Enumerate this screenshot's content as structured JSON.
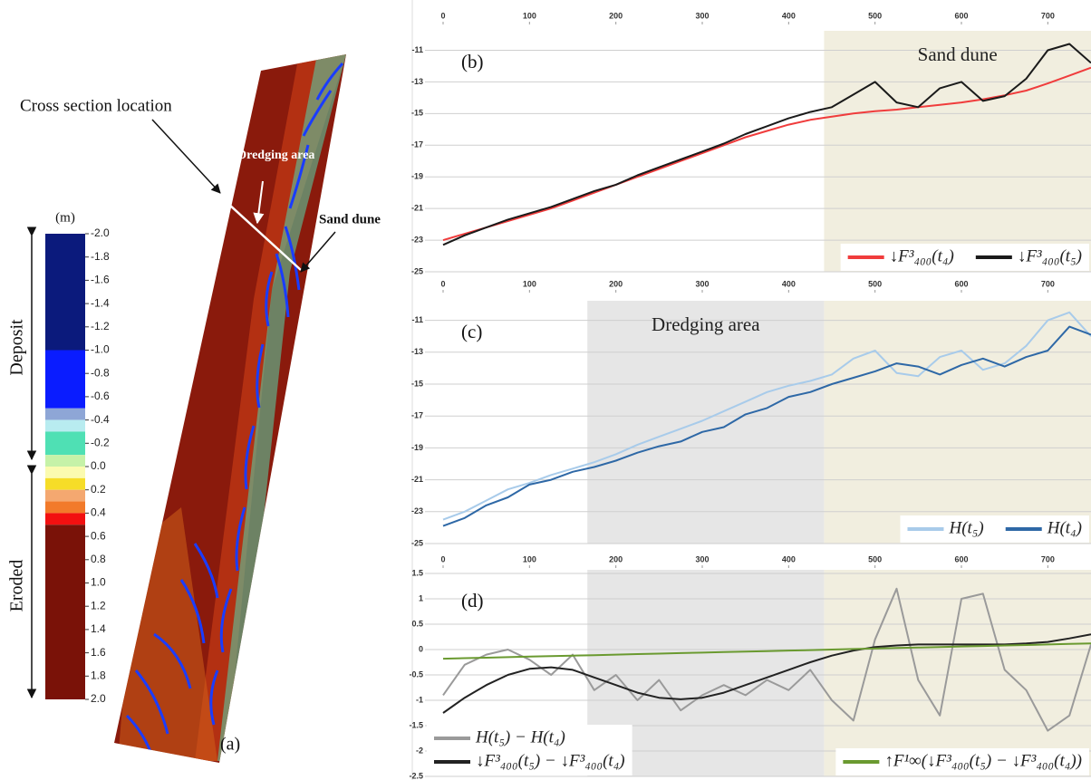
{
  "map_panel": {
    "label": "(a)",
    "cross_section_label": "Cross section location",
    "dredging_label": "Dredging area",
    "sand_dune_label": "Sand dune",
    "colorbar": {
      "unit": "(m)",
      "range": [
        -2,
        2
      ],
      "ticks": [
        {
          "value": -2,
          "label": "-2.0"
        },
        {
          "value": -1.8,
          "label": "-1.8"
        },
        {
          "value": -1.6,
          "label": "-1.6"
        },
        {
          "value": -1.4,
          "label": "-1.4"
        },
        {
          "value": -1.2,
          "label": "-1.2"
        },
        {
          "value": -1,
          "label": "-1.0"
        },
        {
          "value": -0.8,
          "label": "-0.8"
        },
        {
          "value": -0.6,
          "label": "-0.6"
        },
        {
          "value": -0.4,
          "label": "-0.4"
        },
        {
          "value": -0.2,
          "label": "-0.2"
        },
        {
          "value": 0,
          "label": "0.0"
        },
        {
          "value": 0.2,
          "label": "0.2"
        },
        {
          "value": 0.4,
          "label": "0.4"
        },
        {
          "value": 0.6,
          "label": "0.6"
        },
        {
          "value": 0.8,
          "label": "0.8"
        },
        {
          "value": 1,
          "label": "1.0"
        },
        {
          "value": 1.2,
          "label": "1.2"
        },
        {
          "value": 1.4,
          "label": "1.4"
        },
        {
          "value": 1.6,
          "label": "1.6"
        },
        {
          "value": 1.8,
          "label": "1.8"
        },
        {
          "value": 2,
          "label": "2.0"
        }
      ],
      "bands": [
        {
          "from": -2,
          "to": -1,
          "color": "#0b1a7c"
        },
        {
          "from": -1,
          "to": -0.5,
          "color": "#0a1cff"
        },
        {
          "from": -0.5,
          "to": -0.4,
          "color": "#8ea6d6"
        },
        {
          "from": -0.4,
          "to": -0.3,
          "color": "#b8ecf0"
        },
        {
          "from": -0.3,
          "to": -0.1,
          "color": "#4fe0b4"
        },
        {
          "from": -0.1,
          "to": 0,
          "color": "#c6f2a8"
        },
        {
          "from": 0,
          "to": 0.1,
          "color": "#fbfbb0"
        },
        {
          "from": 0.1,
          "to": 0.2,
          "color": "#f6dd28"
        },
        {
          "from": 0.2,
          "to": 0.3,
          "color": "#f4a870"
        },
        {
          "from": 0.3,
          "to": 0.4,
          "color": "#f27a2a"
        },
        {
          "from": 0.4,
          "to": 0.5,
          "color": "#f21010"
        },
        {
          "from": 0.5,
          "to": 2,
          "color": "#7a1208"
        }
      ],
      "groups": [
        {
          "label": "Deposit",
          "from": -2,
          "to": 0
        },
        {
          "label": "Eroded",
          "from": 0,
          "to": 2
        }
      ]
    }
  },
  "chart_data": [
    {
      "type": "line",
      "panel_label": "(b)",
      "legend": "lower right",
      "grid": true,
      "regions": [
        {
          "label": "Sand dune",
          "span": [
            441,
            750
          ],
          "color": "#f1eedf"
        }
      ],
      "x": [
        0,
        25,
        50,
        75,
        100,
        125,
        150,
        175,
        200,
        225,
        250,
        275,
        300,
        325,
        350,
        375,
        400,
        425,
        450,
        475,
        500,
        525,
        550,
        575,
        600,
        625,
        650,
        675,
        700,
        725,
        750
      ],
      "xlim": [
        0,
        750
      ],
      "xticks": [
        0,
        100,
        200,
        300,
        400,
        500,
        600,
        700
      ],
      "ylim": [
        -25,
        -10
      ],
      "yticks": [
        -11,
        -13,
        -15,
        -17,
        -19,
        -21,
        -23,
        -25
      ],
      "series": [
        {
          "name": "↓F³₄₀₀(t₄)",
          "color": "#f03c3c",
          "values": [
            -23.0,
            -22.6,
            -22.2,
            -21.8,
            -21.4,
            -21.0,
            -20.5,
            -20.0,
            -19.5,
            -19.0,
            -18.5,
            -18.0,
            -17.5,
            -17.0,
            -16.5,
            -16.1,
            -15.7,
            -15.4,
            -15.2,
            -15.0,
            -14.85,
            -14.75,
            -14.6,
            -14.45,
            -14.3,
            -14.1,
            -13.85,
            -13.55,
            -13.1,
            -12.6,
            -12.1
          ]
        },
        {
          "name": "↓F³₄₀₀(t₅)",
          "color": "#1a1a1a",
          "values": [
            -23.3,
            -22.7,
            -22.2,
            -21.7,
            -21.3,
            -20.9,
            -20.4,
            -19.9,
            -19.5,
            -18.9,
            -18.4,
            -17.9,
            -17.4,
            -16.9,
            -16.3,
            -15.8,
            -15.3,
            -14.9,
            -14.6,
            -13.8,
            -13.0,
            -14.3,
            -14.6,
            -13.4,
            -13.0,
            -14.2,
            -13.9,
            -12.8,
            -11.0,
            -10.6,
            -11.8
          ]
        }
      ]
    },
    {
      "type": "line",
      "panel_label": "(c)",
      "legend": "lower right",
      "grid": true,
      "regions": [
        {
          "label": "Dredging area",
          "span": [
            167,
            441
          ],
          "color": "#e6e6e6"
        },
        {
          "span": [
            441,
            750
          ],
          "color": "#f1eedf"
        }
      ],
      "x": [
        0,
        25,
        50,
        75,
        100,
        125,
        150,
        175,
        200,
        225,
        250,
        275,
        300,
        325,
        350,
        375,
        400,
        425,
        450,
        475,
        500,
        525,
        550,
        575,
        600,
        625,
        650,
        675,
        700,
        725,
        750
      ],
      "xlim": [
        0,
        750
      ],
      "xticks": [
        0,
        100,
        200,
        300,
        400,
        500,
        600,
        700
      ],
      "ylim": [
        -25,
        -10
      ],
      "yticks": [
        -11,
        -13,
        -15,
        -17,
        -19,
        -21,
        -23,
        -25
      ],
      "series": [
        {
          "name": "H(t₅)",
          "color": "#a8cbea",
          "values": [
            -23.5,
            -23.0,
            -22.3,
            -21.6,
            -21.2,
            -20.7,
            -20.3,
            -19.9,
            -19.4,
            -18.8,
            -18.3,
            -17.8,
            -17.3,
            -16.7,
            -16.1,
            -15.5,
            -15.1,
            -14.8,
            -14.4,
            -13.4,
            -12.9,
            -14.3,
            -14.5,
            -13.3,
            -12.9,
            -14.1,
            -13.7,
            -12.6,
            -11.0,
            -10.5,
            -12.0
          ]
        },
        {
          "name": "H(t₄)",
          "color": "#2e68a6",
          "values": [
            -23.9,
            -23.4,
            -22.6,
            -22.1,
            -21.3,
            -21.0,
            -20.5,
            -20.2,
            -19.8,
            -19.3,
            -18.9,
            -18.6,
            -18.0,
            -17.7,
            -16.9,
            -16.5,
            -15.8,
            -15.5,
            -15.0,
            -14.6,
            -14.2,
            -13.7,
            -13.9,
            -14.4,
            -13.8,
            -13.4,
            -13.9,
            -13.3,
            -12.9,
            -11.4,
            -11.9
          ]
        }
      ]
    },
    {
      "type": "line",
      "panel_label": "(d)",
      "legend": "lower left",
      "grid": true,
      "regions": [
        {
          "span": [
            167,
            441
          ],
          "color": "#e6e6e6"
        },
        {
          "span": [
            441,
            750
          ],
          "color": "#f1eedf"
        }
      ],
      "x": [
        0,
        25,
        50,
        75,
        100,
        125,
        150,
        175,
        200,
        225,
        250,
        275,
        300,
        325,
        350,
        375,
        400,
        425,
        450,
        475,
        500,
        525,
        550,
        575,
        600,
        625,
        650,
        675,
        700,
        725,
        750
      ],
      "xlim": [
        0,
        750
      ],
      "xticks": [
        0,
        100,
        200,
        300,
        400,
        500,
        600,
        700
      ],
      "ylim": [
        -2.5,
        1.5
      ],
      "yticks": [
        1.5,
        1,
        0.5,
        0,
        -0.5,
        -1,
        -1.5,
        -2,
        -2.5
      ],
      "series": [
        {
          "name": "H(t₅) − H(t₄)",
          "color": "#9a9a9a",
          "values": [
            -0.9,
            -0.3,
            -0.1,
            0.0,
            -0.2,
            -0.5,
            -0.1,
            -0.8,
            -0.5,
            -1.0,
            -0.6,
            -1.2,
            -0.9,
            -0.7,
            -0.9,
            -0.6,
            -0.8,
            -0.4,
            -1.0,
            -1.4,
            0.2,
            1.2,
            -0.6,
            -1.3,
            1.0,
            1.1,
            -0.4,
            -0.8,
            -1.6,
            -1.3,
            0.1
          ]
        },
        {
          "name": "↓F³₄₀₀(t₅) − ↓F³₄₀₀(t₄)",
          "color": "#222222",
          "values": [
            -1.25,
            -0.95,
            -0.7,
            -0.5,
            -0.38,
            -0.35,
            -0.4,
            -0.55,
            -0.7,
            -0.85,
            -0.95,
            -0.98,
            -0.95,
            -0.85,
            -0.7,
            -0.55,
            -0.4,
            -0.25,
            -0.12,
            -0.02,
            0.05,
            0.08,
            0.1,
            0.1,
            0.1,
            0.1,
            0.1,
            0.12,
            0.15,
            0.22,
            0.3
          ]
        },
        {
          "name": "↑F¹∞(↓F³₄₀₀(t₅) − ↓F³₄₀₀(t₄))",
          "color": "#6a9a30",
          "legend": "lower right",
          "values": [
            -0.18,
            -0.17,
            -0.16,
            -0.15,
            -0.14,
            -0.13,
            -0.12,
            -0.11,
            -0.1,
            -0.09,
            -0.08,
            -0.07,
            -0.06,
            -0.05,
            -0.04,
            -0.03,
            -0.02,
            -0.01,
            0.0,
            0.01,
            0.02,
            0.03,
            0.04,
            0.05,
            0.06,
            0.07,
            0.08,
            0.09,
            0.1,
            0.11,
            0.12
          ]
        }
      ]
    }
  ]
}
